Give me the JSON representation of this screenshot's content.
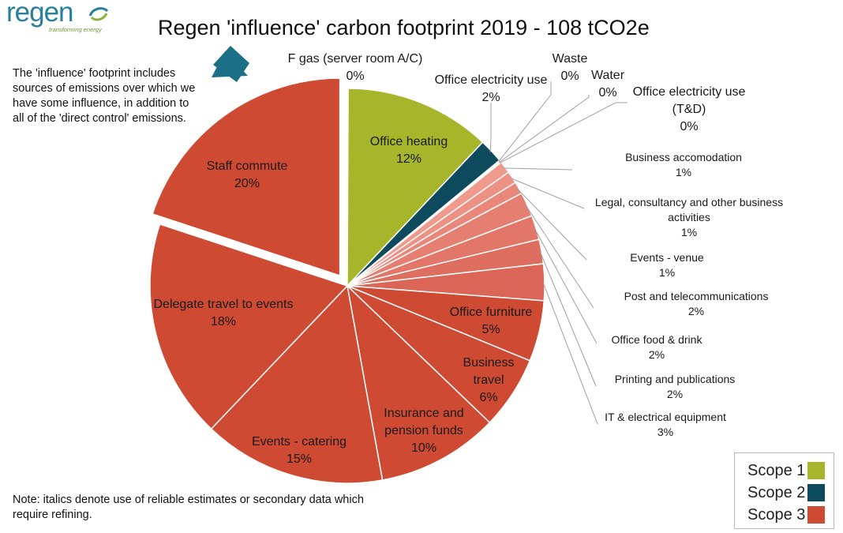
{
  "logo": {
    "word": "regen",
    "tagline": "transforming energy"
  },
  "title": "Regen 'influence' carbon footprint 2019 - 108 tCO2e",
  "callout_text": "The 'influence' footprint includes sources of emissions over which we have some influence, in addition to all of the 'direct control' emissions.",
  "note_text": "Note: italics denote use of reliable estimates or secondary data which require refining.",
  "colors": {
    "scope1": "#a7b52a",
    "scope2": "#0e4a5e",
    "scope3_main": "#ce4a33",
    "scope3_light": "#e07a6a",
    "leader": "#a0a0a0",
    "arrow": "#1b6f86"
  },
  "legend": [
    {
      "label": "Scope 1",
      "color": "#a7b52a"
    },
    {
      "label": "Scope 2",
      "color": "#0e4a5e"
    },
    {
      "label": "Scope 3",
      "color": "#ce4a33"
    }
  ],
  "chart_data": {
    "type": "pie",
    "title": "Regen 'influence' carbon footprint 2019 - 108 tCO2e",
    "unit": "%",
    "slices": [
      {
        "label": "F gas (server room A/C)",
        "value": 0,
        "scope": 1,
        "pct_text": "0%"
      },
      {
        "label": "Office heating",
        "value": 12,
        "scope": 1,
        "pct_text": "12%"
      },
      {
        "label": "Office electricity use",
        "value": 2,
        "scope": 2,
        "pct_text": "2%"
      },
      {
        "label": "Waste",
        "value": 0,
        "scope": 3,
        "pct_text": "0%"
      },
      {
        "label": "Water",
        "value": 0,
        "scope": 3,
        "pct_text": "0%"
      },
      {
        "label": "Office electricity use (T&D)",
        "value": 0,
        "scope": 3,
        "pct_text": "0%"
      },
      {
        "label": "Business accomodation",
        "value": 1,
        "scope": 3,
        "pct_text": "1%"
      },
      {
        "label": "Legal, consultancy and other business activities",
        "value": 1,
        "scope": 3,
        "pct_text": "1%"
      },
      {
        "label": "Events - venue",
        "value": 1,
        "scope": 3,
        "pct_text": "1%"
      },
      {
        "label": "Post and telecommunications",
        "value": 2,
        "scope": 3,
        "pct_text": "2%"
      },
      {
        "label": "Office food & drink",
        "value": 2,
        "scope": 3,
        "pct_text": "2%"
      },
      {
        "label": "Printing and publications",
        "value": 2,
        "scope": 3,
        "pct_text": "2%"
      },
      {
        "label": "IT & electrical equipment",
        "value": 3,
        "scope": 3,
        "pct_text": "3%"
      },
      {
        "label": "Office furniture",
        "value": 5,
        "scope": 3,
        "pct_text": "5%"
      },
      {
        "label": "Business travel",
        "value": 6,
        "scope": 3,
        "pct_text": "6%"
      },
      {
        "label": "Insurance and pension funds",
        "value": 10,
        "scope": 3,
        "pct_text": "10%"
      },
      {
        "label": "Events - catering",
        "value": 15,
        "scope": 3,
        "pct_text": "15%"
      },
      {
        "label": "Delegate travel to events",
        "value": 18,
        "scope": 3,
        "pct_text": "18%"
      },
      {
        "label": "Staff commute",
        "value": 20,
        "scope": 3,
        "pct_text": "20%"
      }
    ],
    "legend_placement": "bottom-right"
  }
}
